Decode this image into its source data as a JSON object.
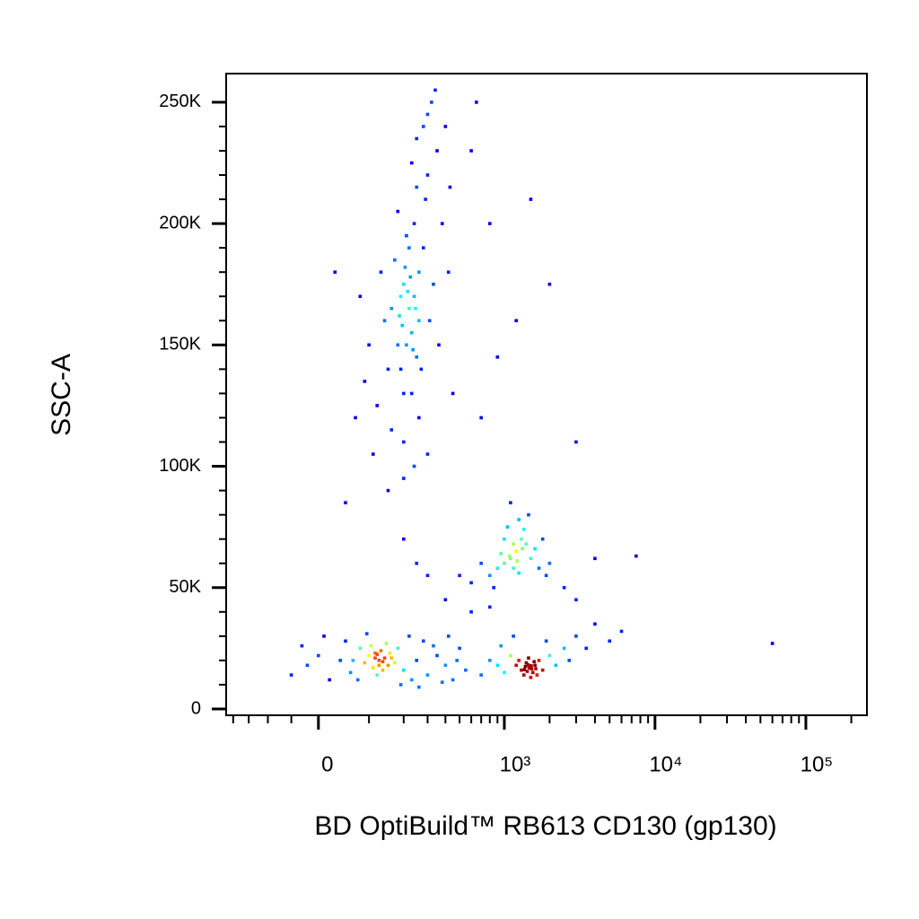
{
  "chart_data": {
    "type": "scatter",
    "x_label": "BD OptiBuild™ RB613 CD130 (gp130)",
    "y_label": "SSC-A",
    "xscale": "biexponential",
    "xlim": [
      -226,
      254000
    ],
    "ylim": [
      -2600,
      261800
    ],
    "xticks": [
      0,
      {
        "value": 1000,
        "label": "10³"
      },
      {
        "value": 10000,
        "label": "10⁴"
      },
      {
        "value": 100000,
        "label": "10⁵"
      }
    ],
    "yticks": [
      0,
      {
        "value": 50000,
        "label": "50K"
      },
      {
        "value": 100000,
        "label": "100K"
      },
      {
        "value": 150000,
        "label": "150K"
      },
      {
        "value": 200000,
        "label": "200K"
      },
      {
        "value": 250000,
        "label": "250K"
      }
    ],
    "xminorticks": [
      -200,
      -150,
      -100,
      -50,
      100,
      200,
      300,
      400,
      500,
      600,
      700,
      800,
      900,
      2000,
      3000,
      4000,
      5000,
      6000,
      7000,
      8000,
      9000,
      20000,
      30000,
      40000,
      50000,
      60000,
      70000,
      80000,
      90000,
      200000
    ],
    "yminorticks": [
      10000,
      20000,
      30000,
      40000,
      60000,
      70000,
      80000,
      90000,
      110000,
      120000,
      130000,
      140000,
      160000,
      170000,
      180000,
      190000,
      210000,
      220000,
      230000,
      240000
    ],
    "x": [
      220,
      180,
      260,
      240,
      150,
      300,
      200,
      280,
      320,
      190,
      230,
      170,
      250,
      210,
      140,
      290,
      350,
      120,
      160,
      200,
      260,
      330,
      100,
      90,
      380,
      310,
      270,
      230,
      300,
      340,
      250,
      180,
      130,
      210,
      240,
      220,
      200,
      260,
      190,
      280,
      360,
      420,
      450,
      80,
      70,
      110,
      300,
      240,
      400,
      430,
      160,
      230,
      250,
      195,
      215,
      235,
      205,
      245,
      225,
      185,
      600,
      800,
      1200,
      1500,
      900,
      700,
      30,
      2000,
      650,
      125,
      100,
      150,
      80,
      60,
      40,
      20,
      -20,
      -50,
      0,
      180,
      200,
      250,
      300,
      350,
      400,
      450,
      500,
      550,
      110,
      130,
      140,
      90,
      115,
      135,
      160,
      170,
      105,
      75,
      50,
      220,
      280,
      10,
      -30,
      190,
      230,
      120,
      145,
      95,
      65,
      155,
      125,
      115,
      135,
      120,
      330,
      420,
      480,
      260,
      380,
      1470,
      1300,
      1600,
      1400,
      1550,
      1350,
      1700,
      1200,
      1800,
      1450,
      1500,
      1250,
      1650,
      1380,
      1520,
      1420,
      1580,
      1100,
      1000,
      900,
      800,
      700,
      2000,
      2200,
      2500,
      2700,
      1900,
      1150,
      950,
      3000,
      3500,
      4000,
      5000,
      6000,
      1460,
      1490,
      1440,
      1510,
      1360,
      1620,
      1100,
      1000,
      1200,
      1300,
      900,
      800,
      1400,
      1500,
      1050,
      1250,
      700,
      600,
      1600,
      1700,
      950,
      1150,
      1350,
      1800,
      2000,
      1150,
      1080,
      1220,
      500,
      1450,
      1100,
      850,
      1900,
      1320,
      1000,
      1250,
      400,
      300,
      200,
      600,
      800,
      2500,
      3000,
      200,
      150,
      50,
      4000,
      60000,
      7500,
      3000,
      250
    ],
    "values": [
      165000,
      150000,
      180000,
      200000,
      140000,
      220000,
      130000,
      240000,
      250000,
      170000,
      155000,
      185000,
      145000,
      195000,
      160000,
      210000,
      230000,
      125000,
      115000,
      110000,
      120000,
      175000,
      150000,
      135000,
      200000,
      160000,
      140000,
      225000,
      245000,
      255000,
      235000,
      205000,
      180000,
      150000,
      170000,
      190000,
      175000,
      160000,
      140000,
      190000,
      150000,
      180000,
      130000,
      170000,
      120000,
      105000,
      105000,
      100000,
      240000,
      215000,
      165000,
      130000,
      215000,
      158000,
      172000,
      148000,
      182000,
      165000,
      178000,
      162000,
      230000,
      200000,
      160000,
      210000,
      145000,
      120000,
      180000,
      175000,
      250000,
      20000,
      22000,
      18000,
      25000,
      15000,
      20000,
      12000,
      18000,
      14000,
      22000,
      25000,
      16000,
      20000,
      14000,
      22000,
      18000,
      12000,
      25000,
      16000,
      17000,
      24000,
      21000,
      19000,
      23000,
      16000,
      21000,
      19000,
      26000,
      12000,
      28000,
      30000,
      28000,
      30000,
      26000,
      10000,
      12000,
      14000,
      27000,
      31000,
      20000,
      23000,
      18000,
      21000,
      19500,
      22500,
      26000,
      30000,
      20000,
      9000,
      11000,
      17000,
      16000,
      18000,
      19000,
      15000,
      14000,
      20000,
      18000,
      16000,
      21000,
      13000,
      20000,
      14000,
      17500,
      16500,
      15500,
      19500,
      22000,
      15000,
      18000,
      20000,
      14000,
      22000,
      18000,
      25000,
      20000,
      28000,
      30000,
      26000,
      30000,
      25000,
      35000,
      28000,
      32000,
      17200,
      16800,
      18200,
      17800,
      16200,
      16600,
      62000,
      60000,
      65000,
      70000,
      58000,
      55000,
      68000,
      62000,
      75000,
      78000,
      60000,
      52000,
      66000,
      58000,
      64000,
      58000,
      74000,
      70000,
      60000,
      68000,
      63000,
      61000,
      55000,
      80000,
      85000,
      50000,
      55000,
      66000,
      70000,
      56000,
      45000,
      55000,
      70000,
      40000,
      42000,
      50000,
      45000,
      95000,
      90000,
      85000,
      62000,
      27000,
      63000,
      110000,
      60000
    ]
  }
}
